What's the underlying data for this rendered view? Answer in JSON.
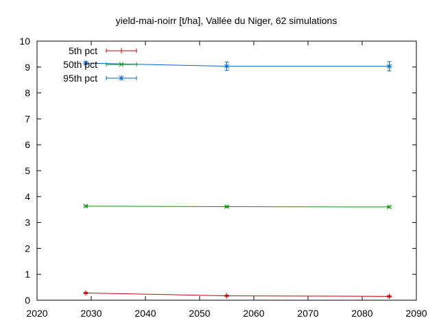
{
  "chart_data": {
    "type": "line",
    "title": "yield-mai-noirr [t/ha], Vallée du Niger, 62 simulations",
    "xlabel": "",
    "ylabel": "",
    "xlim": [
      2020,
      2090
    ],
    "ylim": [
      0,
      10
    ],
    "xticks": [
      2020,
      2030,
      2040,
      2050,
      2060,
      2070,
      2080,
      2090
    ],
    "yticks": [
      0,
      1,
      2,
      3,
      4,
      5,
      6,
      7,
      8,
      9,
      10
    ],
    "grid": false,
    "legend": "top-left",
    "x": [
      2029,
      2055,
      2085
    ],
    "series": [
      {
        "name": "5th pct",
        "color": "#cc0000",
        "marker": "plus",
        "values": [
          0.28,
          0.17,
          0.15
        ],
        "errors": [
          0.03,
          0.03,
          0.03
        ]
      },
      {
        "name": "50th pct",
        "color": "#009900",
        "marker": "cross",
        "values": [
          3.63,
          3.61,
          3.6
        ],
        "errors": [
          0.03,
          0.03,
          0.03
        ]
      },
      {
        "name": "95th pct",
        "color": "#0066cc",
        "marker": "star",
        "values": [
          9.15,
          9.03,
          9.03
        ],
        "errors": [
          0.06,
          0.16,
          0.18
        ]
      }
    ]
  }
}
